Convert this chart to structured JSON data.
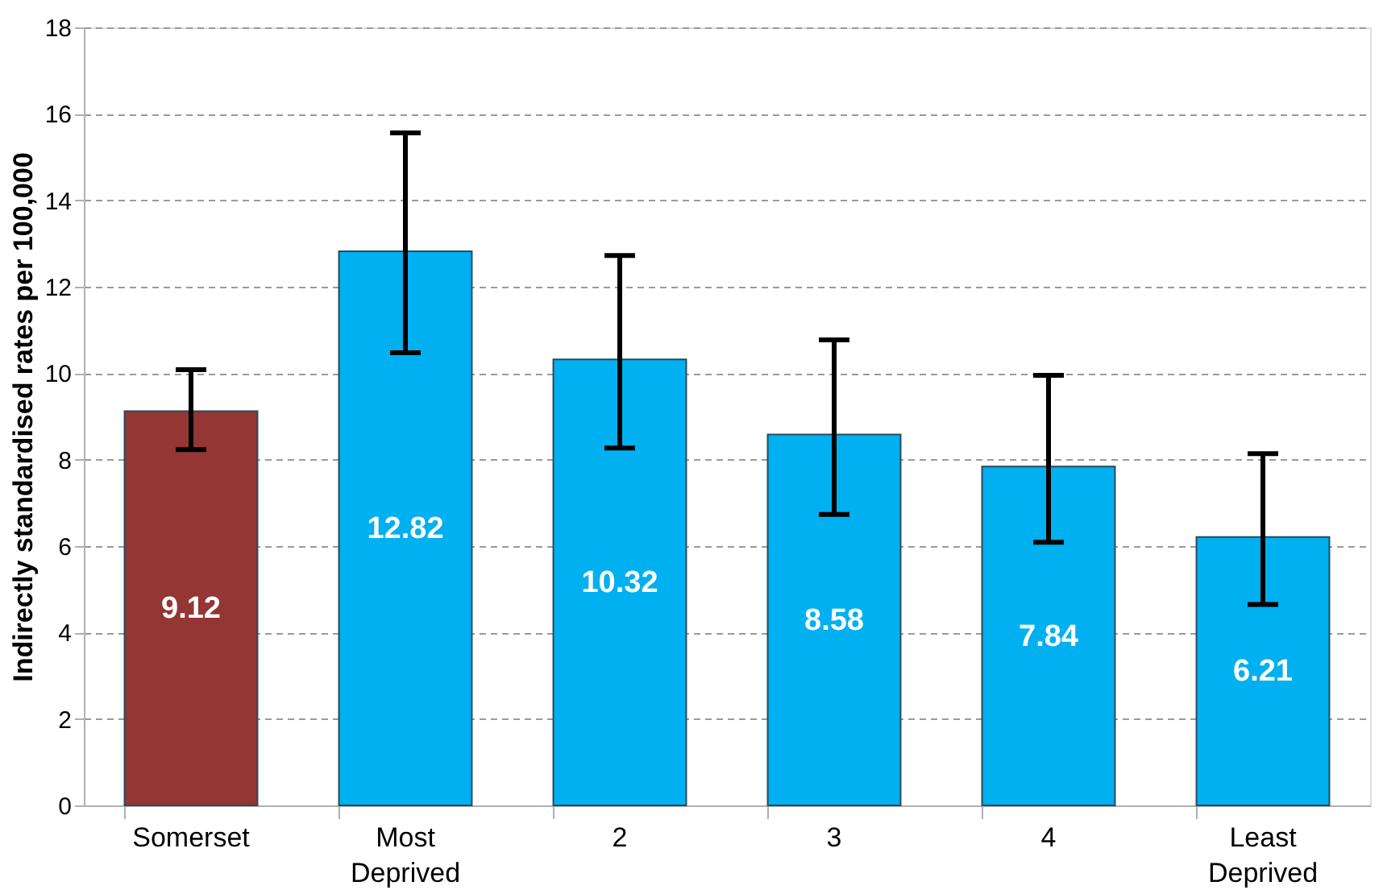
{
  "chart_data": {
    "type": "bar",
    "ylabel": "Indirectly standardised rates per 100,000",
    "categories": [
      "Somerset",
      "Most Deprived",
      "2",
      "3",
      "4",
      "Least Deprived"
    ],
    "values": [
      9.12,
      12.82,
      10.32,
      8.58,
      7.84,
      6.21
    ],
    "colors": [
      "#943634",
      "#00b0f0",
      "#00b0f0",
      "#00b0f0",
      "#00b0f0",
      "#00b0f0"
    ],
    "errors": [
      [
        8.23,
        10.08
      ],
      [
        10.47,
        15.56
      ],
      [
        8.27,
        12.72
      ],
      [
        6.73,
        10.77
      ],
      [
        6.09,
        9.95
      ],
      [
        4.65,
        8.14
      ]
    ],
    "ylim": [
      0,
      18
    ],
    "yticks": [
      0,
      2,
      4,
      6,
      8,
      10,
      12,
      14,
      16,
      18
    ],
    "grid": "y",
    "data_labels": true
  }
}
